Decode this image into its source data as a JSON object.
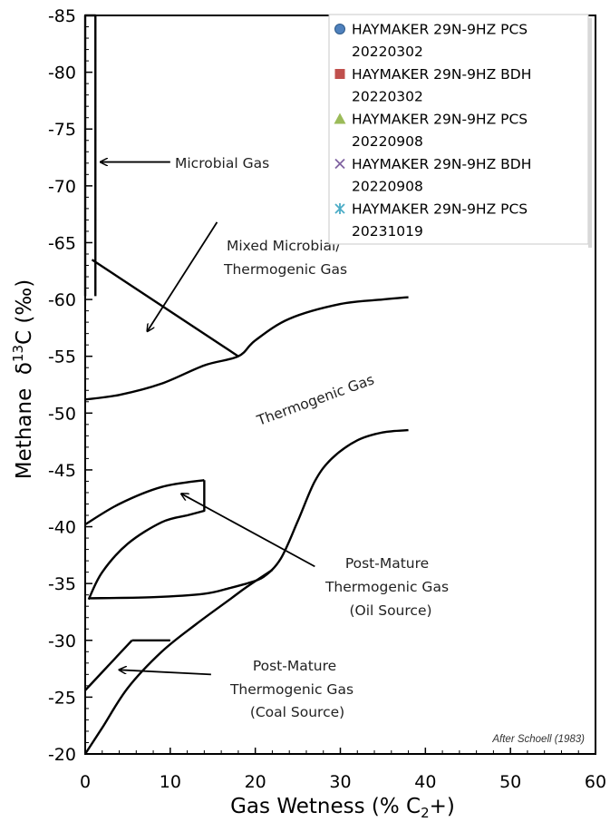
{
  "chart_data": {
    "type": "scatter",
    "title": "",
    "xlabel": "Gas Wetness (% C",
    "xlabel_sub": "2",
    "xlabel_tail": "+)",
    "ylabel": "Methane  δ",
    "ylabel_sup": "13",
    "ylabel_tail": "C (‰)",
    "xlim": [
      0,
      60
    ],
    "ylim": [
      -20,
      -85
    ],
    "x_ticks": [
      "0",
      "10",
      "20",
      "30",
      "40",
      "50",
      "60"
    ],
    "y_ticks": [
      "-20",
      "-25",
      "-30",
      "-35",
      "-40",
      "-45",
      "-50",
      "-55",
      "-60",
      "-65",
      "-70",
      "-75",
      "-80",
      "-85"
    ],
    "grid": false,
    "legend_position": "top-right",
    "series": [
      {
        "name": "HAYMAKER 29N-9HZ PCS 20220302",
        "marker": "circle",
        "color": "#4f81bd",
        "points": []
      },
      {
        "name": "HAYMAKER 29N-9HZ BDH 20220302",
        "marker": "square",
        "color": "#c0504d",
        "points": []
      },
      {
        "name": "HAYMAKER 29N-9HZ PCS 20220908",
        "marker": "triangle",
        "color": "#9bbb59",
        "points": []
      },
      {
        "name": "HAYMAKER 29N-9HZ BDH 20220908",
        "marker": "x",
        "color": "#8064a2",
        "points": []
      },
      {
        "name": "HAYMAKER 29N-9HZ PCS 20231019",
        "marker": "star",
        "color": "#4bacc6",
        "points": []
      }
    ],
    "region_labels": {
      "microbial": "Microbial Gas",
      "mixed_line1": "Mixed Microbial/",
      "mixed_line2": "Thermogenic Gas",
      "thermogenic": "Thermogenic Gas",
      "post_oil_line1": "Post-Mature",
      "post_oil_line2": "Thermogenic Gas",
      "post_oil_line3": "(Oil Source)",
      "post_coal_line1": "Post-Mature",
      "post_coal_line2": "Thermogenic Gas",
      "post_coal_line3": "(Coal Source)"
    },
    "boundaries": {
      "microbial_box": [
        [
          0,
          -60.3
        ],
        [
          0,
          -85
        ],
        [
          1.2,
          -85
        ],
        [
          1.2,
          -60.3
        ]
      ],
      "mixed_line": [
        [
          0.8,
          -63.5
        ],
        [
          18,
          -55
        ]
      ],
      "thermogenic_upper": [
        [
          0,
          -51.2
        ],
        [
          4,
          -51.6
        ],
        [
          9,
          -52.6
        ],
        [
          14,
          -54.2
        ],
        [
          18,
          -55
        ],
        [
          20,
          -56.4
        ],
        [
          24,
          -58.3
        ],
        [
          30,
          -59.6
        ],
        [
          35,
          -60.0
        ],
        [
          38,
          -60.2
        ]
      ],
      "oil_outer_top": [
        [
          0,
          -40.2
        ],
        [
          4,
          -42.0
        ],
        [
          9,
          -43.5
        ],
        [
          14,
          -44.1
        ]
      ],
      "oil_side": [
        [
          14,
          -44.1
        ],
        [
          14,
          -41.4
        ],
        [
          12,
          -41.0
        ]
      ],
      "oil_inner": [
        [
          0.4,
          -33.6
        ],
        [
          2,
          -36.0
        ],
        [
          5,
          -38.5
        ],
        [
          9,
          -40.4
        ],
        [
          12,
          -41.0
        ]
      ],
      "oil_bottom": [
        [
          0.4,
          -33.7
        ],
        [
          8,
          -33.8
        ],
        [
          14,
          -34.1
        ],
        [
          17,
          -34.6
        ],
        [
          19,
          -35.0
        ]
      ],
      "oil_upper_sigmoid": [
        [
          19,
          -35.0
        ],
        [
          21,
          -35.6
        ],
        [
          23,
          -37.2
        ],
        [
          25,
          -40.5
        ],
        [
          27,
          -44.0
        ],
        [
          29,
          -46.0
        ],
        [
          32,
          -47.6
        ],
        [
          35,
          -48.3
        ],
        [
          38,
          -48.5
        ]
      ],
      "coal_lower": [
        [
          0,
          -20.0
        ],
        [
          2,
          -22.3
        ],
        [
          5,
          -25.8
        ],
        [
          9,
          -29.0
        ],
        [
          13,
          -31.4
        ],
        [
          17,
          -33.6
        ],
        [
          19,
          -34.7
        ],
        [
          22,
          -36.2
        ]
      ],
      "coal_upper": [
        [
          0,
          -25.6
        ],
        [
          3,
          -28.0
        ],
        [
          5.5,
          -30.0
        ]
      ],
      "coal_top": [
        [
          5.5,
          -30.0
        ],
        [
          10,
          -30.0
        ]
      ]
    },
    "arrows": [
      {
        "from": [
          10,
          -72.1
        ],
        "to": [
          1.8,
          -72.1
        ]
      },
      {
        "from": [
          15.5,
          -66.8
        ],
        "to": [
          7.3,
          -57.2
        ]
      },
      {
        "from": [
          27,
          -36.5
        ],
        "to": [
          11.3,
          -42.9
        ]
      },
      {
        "from": [
          14.8,
          -27.0
        ],
        "to": [
          4.0,
          -27.4
        ]
      }
    ],
    "annotation": "After Schoell (1983)"
  }
}
